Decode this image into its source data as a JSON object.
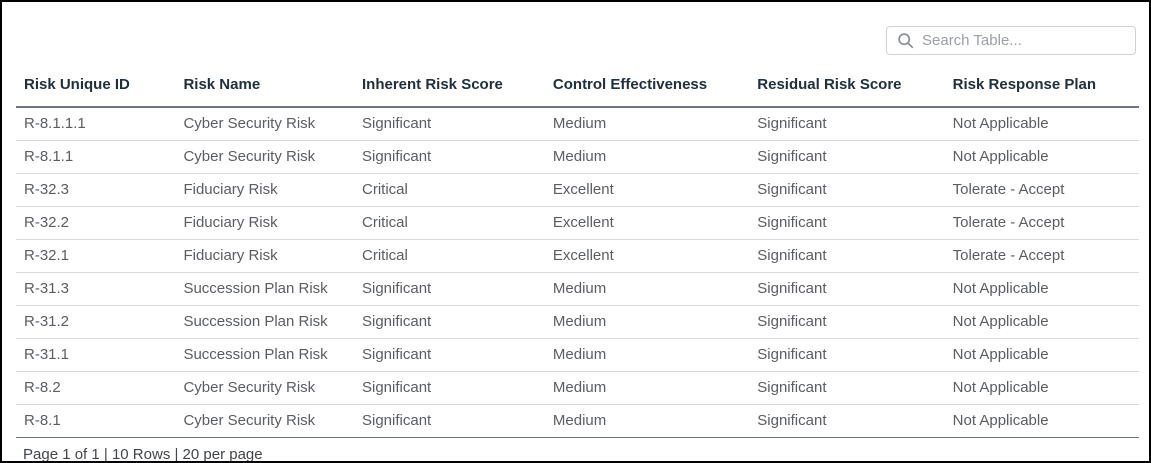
{
  "theme": {
    "header_text_color": "#20303c",
    "body_text_color": "#5a5d61",
    "row_divider_color": "#d9d9d9",
    "strong_divider_color": "#6e7580",
    "search_border_color": "#d2d2d2",
    "outer_border_color": "#000000"
  },
  "search": {
    "placeholder": "Search Table...",
    "icon": "magnifier"
  },
  "table": {
    "columns": [
      "Risk Unique ID",
      "Risk Name",
      "Inherent Risk Score",
      "Control Effectiveness",
      "Residual Risk Score",
      "Risk Response Plan"
    ],
    "rows": [
      [
        "R-8.1.1.1",
        "Cyber Security Risk",
        "Significant",
        "Medium",
        "Significant",
        "Not Applicable"
      ],
      [
        "R-8.1.1",
        "Cyber Security Risk",
        "Significant",
        "Medium",
        "Significant",
        "Not Applicable"
      ],
      [
        "R-32.3",
        "Fiduciary Risk",
        "Critical",
        "Excellent",
        "Significant",
        "Tolerate - Accept"
      ],
      [
        "R-32.2",
        "Fiduciary Risk",
        "Critical",
        "Excellent",
        "Significant",
        "Tolerate - Accept"
      ],
      [
        "R-32.1",
        "Fiduciary Risk",
        "Critical",
        "Excellent",
        "Significant",
        "Tolerate - Accept"
      ],
      [
        "R-31.3",
        "Succession Plan Risk",
        "Significant",
        "Medium",
        "Significant",
        "Not Applicable"
      ],
      [
        "R-31.2",
        "Succession Plan Risk",
        "Significant",
        "Medium",
        "Significant",
        "Not Applicable"
      ],
      [
        "R-31.1",
        "Succession Plan Risk",
        "Significant",
        "Medium",
        "Significant",
        "Not Applicable"
      ],
      [
        "R-8.2",
        "Cyber Security Risk",
        "Significant",
        "Medium",
        "Significant",
        "Not Applicable"
      ],
      [
        "R-8.1",
        "Cyber Security Risk",
        "Significant",
        "Medium",
        "Significant",
        "Not Applicable"
      ]
    ]
  },
  "footer": {
    "pagination_text": "Page 1 of 1 | 10 Rows | 20 per page"
  }
}
